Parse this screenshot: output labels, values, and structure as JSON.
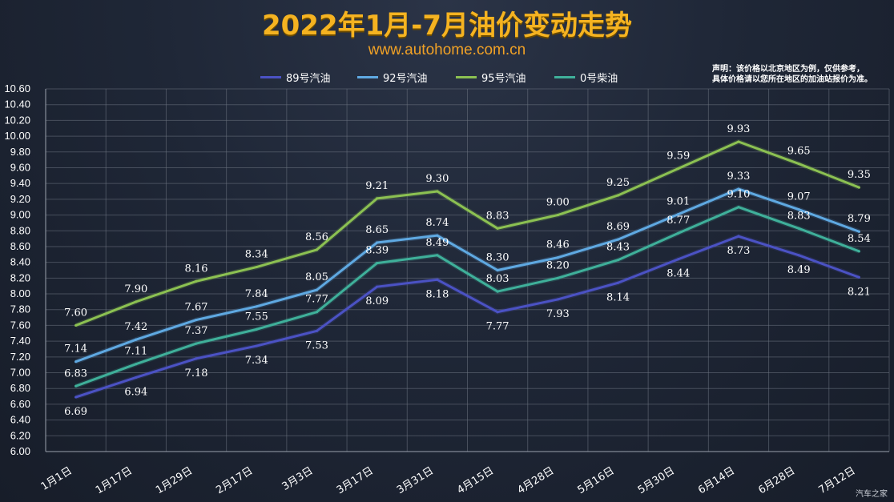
{
  "header": {
    "title": "2022年1月-7月油价变动走势",
    "subtitle": "www.autohome.com.cn",
    "note_line1": "声明：该价格以北京地区为例，仅供参考，",
    "note_line2": "具体价格请以您所在地区的加油站报价为准。"
  },
  "watermark": "汽车之家",
  "colors": {
    "title": "#f5b321",
    "grid": "#6b7280",
    "89": "#4b52c4",
    "92": "#5fa9e2",
    "95": "#8cc152",
    "0": "#3fb09a"
  },
  "chart_data": {
    "type": "line",
    "title": "2022年1月-7月油价变动走势",
    "categories": [
      "1月1日",
      "1月17日",
      "1月29日",
      "2月17日",
      "3月3日",
      "3月17日",
      "3月31日",
      "4月15日",
      "4月28日",
      "5月16日",
      "5月30日",
      "6月14日",
      "6月28日",
      "7月12日"
    ],
    "ylim": [
      6.0,
      10.6
    ],
    "yticks": [
      "6.00",
      "6.20",
      "6.40",
      "6.60",
      "6.80",
      "7.00",
      "7.20",
      "7.40",
      "7.60",
      "7.80",
      "8.00",
      "8.20",
      "8.40",
      "8.60",
      "8.80",
      "9.00",
      "9.20",
      "9.40",
      "9.60",
      "9.80",
      "10.00",
      "10.20",
      "10.40",
      "10.60"
    ],
    "grid": true,
    "legend_position": "top",
    "series": [
      {
        "name": "89号汽油",
        "key": "89",
        "values": [
          6.69,
          6.94,
          7.18,
          7.34,
          7.53,
          8.09,
          8.18,
          7.77,
          7.93,
          8.14,
          8.44,
          8.73,
          8.49,
          8.21
        ]
      },
      {
        "name": "92号汽油",
        "key": "92",
        "values": [
          7.14,
          7.42,
          7.67,
          7.84,
          8.05,
          8.65,
          8.74,
          8.3,
          8.46,
          8.69,
          9.01,
          9.33,
          9.07,
          8.79
        ]
      },
      {
        "name": "95号汽油",
        "key": "95",
        "values": [
          7.6,
          7.9,
          8.16,
          8.34,
          8.56,
          9.21,
          9.3,
          8.83,
          9.0,
          9.25,
          9.59,
          9.93,
          9.65,
          9.35
        ]
      },
      {
        "name": "0号柴油",
        "key": "0",
        "values": [
          6.83,
          7.11,
          7.37,
          7.55,
          7.77,
          8.39,
          8.49,
          8.03,
          8.2,
          8.43,
          8.77,
          9.1,
          8.83,
          8.54
        ]
      }
    ]
  }
}
